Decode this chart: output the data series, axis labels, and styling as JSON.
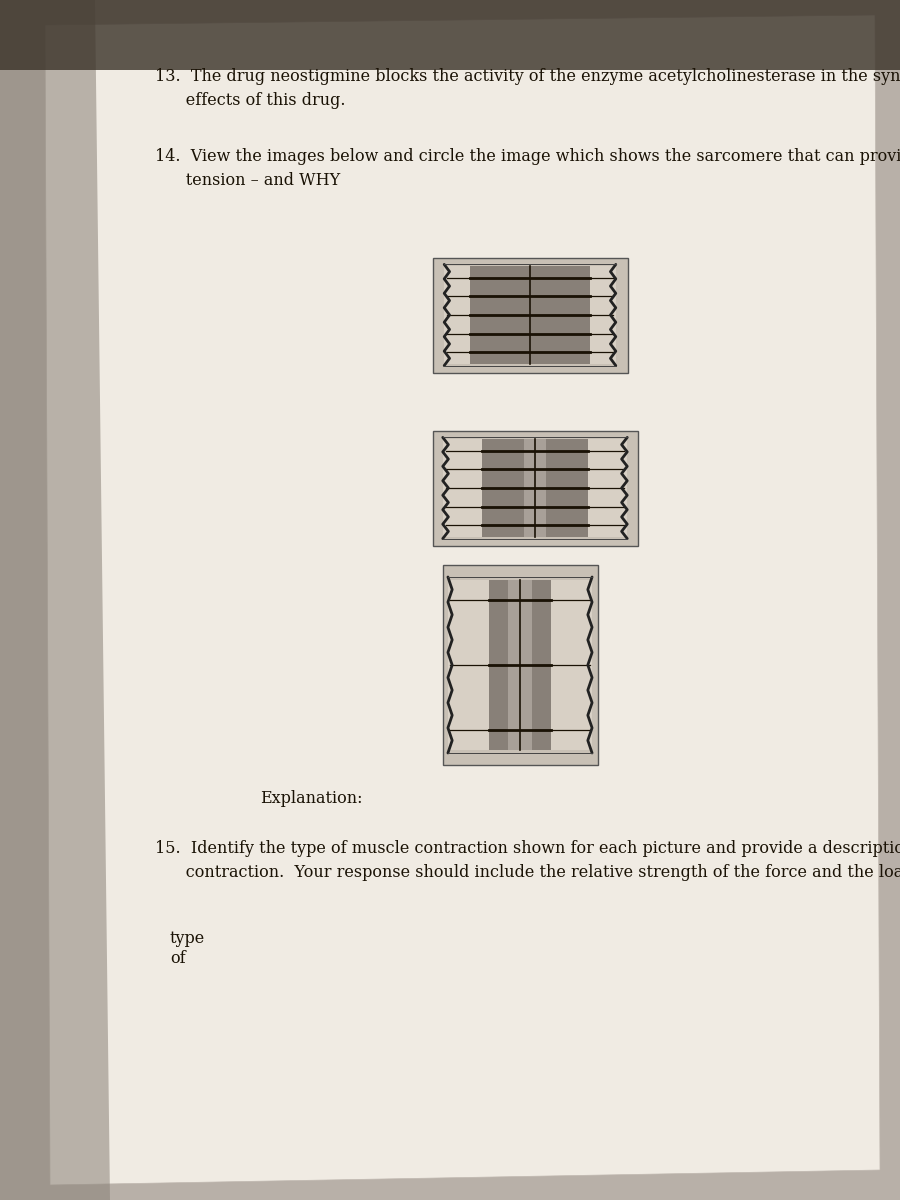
{
  "bg_color": "#b8b0a8",
  "paper_color": "#f0ebe3",
  "text_color": "#1a1205",
  "font_size": 11.5,
  "q13_line1": "13.  The drug neostigmine blocks the activity of the enzyme acetylcholinesterase in the synaptic cleft.  Predict the",
  "q13_line2": "      effects of this drug.",
  "q14_line1": "14.  View the images below and circle the image which shows the sarcomere that can provide optimal muscle",
  "q14_line2": "      tension – and WHY",
  "explanation": "Explanation:",
  "q15_line1": "15.  Identify the type of muscle contraction shown for each picture and provide a description of each",
  "q15_line2": "      contraction.  Your response should include the relative strength of the force and the load for each.",
  "type_of": "type\nof",
  "sarcomere_bg": "#c8c0b5",
  "aband_color": "#888078",
  "iband_color": "#d8d0c5",
  "hzone_color": "#a8a098",
  "line_color": "#1a1205",
  "zline_color": "#222222"
}
